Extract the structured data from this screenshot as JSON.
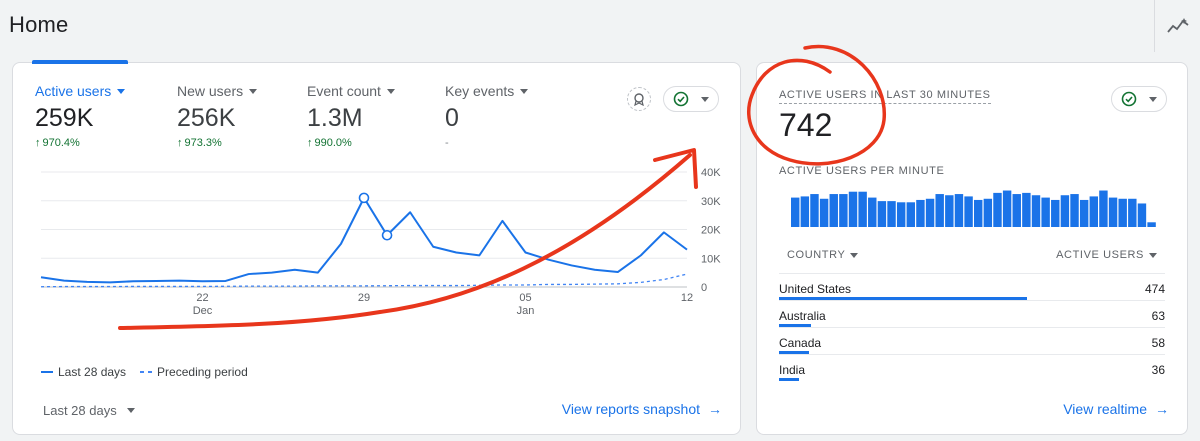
{
  "page": {
    "title": "Home"
  },
  "overview": {
    "metrics": [
      {
        "label": "Active users",
        "value": "259K",
        "change": "970.4%",
        "active": true
      },
      {
        "label": "New users",
        "value": "256K",
        "change": "973.3%"
      },
      {
        "label": "Event count",
        "value": "1.3M",
        "change": "990.0%"
      },
      {
        "label": "Key events",
        "value": "0",
        "change": "-"
      }
    ],
    "legend": {
      "current": "Last 28 days",
      "previous": "Preceding period"
    },
    "date_range": "Last 28 days",
    "link": "View reports snapshot"
  },
  "chart_data": {
    "type": "line",
    "x": [
      "Dec 15",
      "Dec 16",
      "Dec 17",
      "Dec 18",
      "Dec 19",
      "Dec 20",
      "Dec 21",
      "Dec 22",
      "Dec 23",
      "Dec 24",
      "Dec 25",
      "Dec 26",
      "Dec 27",
      "Dec 28",
      "Dec 29",
      "Dec 30",
      "Dec 31",
      "Jan 1",
      "Jan 2",
      "Jan 3",
      "Jan 4",
      "Jan 5",
      "Jan 6",
      "Jan 7",
      "Jan 8",
      "Jan 9",
      "Jan 10",
      "Jan 11",
      "Jan 12"
    ],
    "series": [
      {
        "name": "Last 28 days",
        "values": [
          3400,
          2200,
          1800,
          1600,
          2000,
          2100,
          2200,
          2000,
          2100,
          4500,
          5000,
          6000,
          5000,
          15000,
          31000,
          18000,
          26000,
          14000,
          12000,
          11000,
          23000,
          12000,
          9500,
          7500,
          6000,
          5200,
          11000,
          19000,
          13000
        ]
      },
      {
        "name": "Preceding period",
        "values": [
          100,
          150,
          150,
          150,
          200,
          200,
          200,
          200,
          250,
          300,
          300,
          300,
          400,
          400,
          400,
          450,
          500,
          500,
          500,
          600,
          700,
          700,
          900,
          900,
          1000,
          1100,
          1600,
          2600,
          4500
        ]
      }
    ],
    "x_ticks": [
      {
        "label": "22",
        "sub": "Dec",
        "index": 7
      },
      {
        "label": "29",
        "sub": "",
        "index": 14
      },
      {
        "label": "05",
        "sub": "Jan",
        "index": 21
      },
      {
        "label": "12",
        "sub": "",
        "index": 28
      }
    ],
    "y_ticks": [
      "0",
      "10K",
      "20K",
      "30K",
      "40K"
    ],
    "ylim": [
      0,
      40000
    ],
    "highlighted_points": [
      14,
      15
    ],
    "grid": true,
    "colors": {
      "current": "#1a73e8",
      "previous": "#4285f4"
    }
  },
  "realtime": {
    "heading": "ACTIVE USERS IN LAST 30 MINUTES",
    "value": "742",
    "per_minute_heading": "ACTIVE USERS PER MINUTE",
    "per_minute": [
      25,
      26,
      28,
      24,
      28,
      28,
      30,
      30,
      25,
      22,
      22,
      21,
      21,
      23,
      24,
      28,
      27,
      28,
      26,
      23,
      24,
      29,
      31,
      28,
      29,
      27,
      25,
      23,
      27,
      28,
      23,
      26,
      31,
      25,
      24,
      24,
      20,
      4
    ],
    "columns": {
      "country": "COUNTRY",
      "users": "ACTIVE USERS"
    },
    "rows": [
      {
        "country": "United States",
        "users": "474",
        "share": 1.0
      },
      {
        "country": "Australia",
        "users": "63",
        "share": 0.13
      },
      {
        "country": "Canada",
        "users": "58",
        "share": 0.12
      },
      {
        "country": "India",
        "users": "36",
        "share": 0.08
      }
    ],
    "link": "View realtime"
  },
  "annotation_color": "#e8361c"
}
